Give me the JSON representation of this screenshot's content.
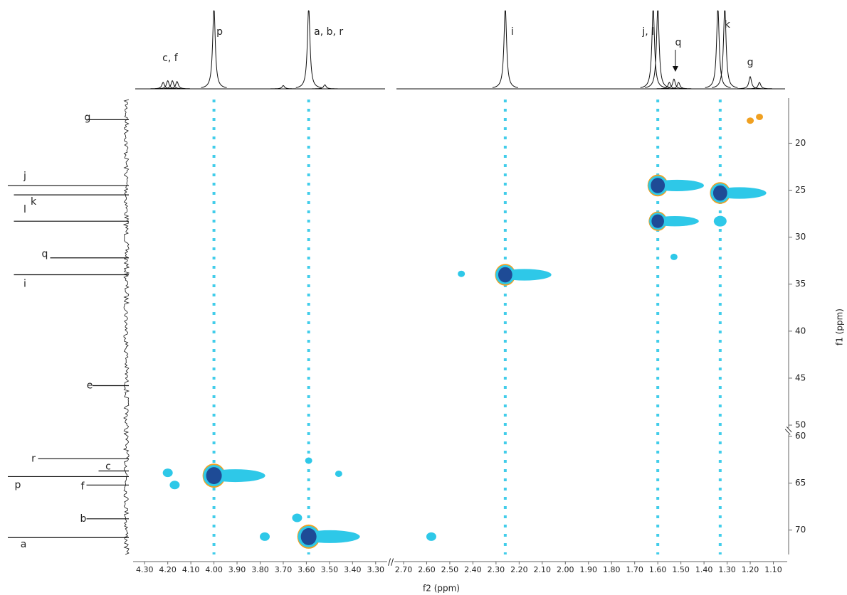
{
  "chart_data": {
    "type": "hsqc",
    "x_label": "f2 (ppm)",
    "y_label": "f1 (ppm)",
    "x_segments": [
      {
        "xlim": [
          4.35,
          3.25
        ],
        "xticks": [
          {
            "value": 4.3,
            "label": "4.30"
          },
          {
            "value": 4.2,
            "label": "4.20"
          },
          {
            "value": 4.1,
            "label": "4.10"
          },
          {
            "value": 4.0,
            "label": "4.00"
          },
          {
            "value": 3.9,
            "label": "3.90"
          },
          {
            "value": 3.8,
            "label": "3.80"
          },
          {
            "value": 3.7,
            "label": "3.70"
          },
          {
            "value": 3.6,
            "label": "3.60"
          },
          {
            "value": 3.5,
            "label": "3.50"
          },
          {
            "value": 3.4,
            "label": "3.40"
          },
          {
            "value": 3.3,
            "label": "3.30"
          }
        ]
      },
      {
        "xlim": [
          2.74,
          1.04
        ],
        "xticks": [
          {
            "value": 2.7,
            "label": "2.70"
          },
          {
            "value": 2.6,
            "label": "2.60"
          },
          {
            "value": 2.5,
            "label": "2.50"
          },
          {
            "value": 2.4,
            "label": "2.40"
          },
          {
            "value": 2.3,
            "label": "2.30"
          },
          {
            "value": 2.2,
            "label": "2.20"
          },
          {
            "value": 2.1,
            "label": "2.10"
          },
          {
            "value": 2.0,
            "label": "2.00"
          },
          {
            "value": 1.9,
            "label": "1.90"
          },
          {
            "value": 1.8,
            "label": "1.80"
          },
          {
            "value": 1.7,
            "label": "1.70"
          },
          {
            "value": 1.6,
            "label": "1.60"
          },
          {
            "value": 1.5,
            "label": "1.50"
          },
          {
            "value": 1.4,
            "label": "1.40"
          },
          {
            "value": 1.3,
            "label": "1.30"
          },
          {
            "value": 1.2,
            "label": "1.20"
          },
          {
            "value": 1.1,
            "label": "1.10"
          }
        ]
      }
    ],
    "y_segments": [
      {
        "ylim": [
          15.2,
          50.3
        ],
        "yticks": [
          20,
          25,
          30,
          35,
          40,
          45,
          50
        ]
      },
      {
        "ylim": [
          59.8,
          72.6
        ],
        "yticks": [
          60,
          65,
          70
        ]
      }
    ],
    "peaks": {
      "x": [
        4.0,
        3.59,
        2.26,
        1.6,
        1.6,
        1.33,
        1.33,
        4.2,
        4.17,
        3.64,
        3.59,
        1.53,
        1.2,
        1.16,
        2.58,
        3.78,
        3.46,
        2.45
      ],
      "y": [
        64.2,
        70.7,
        34.0,
        24.5,
        28.3,
        25.3,
        28.3,
        63.9,
        65.2,
        68.7,
        62.6,
        32.1,
        17.6,
        17.2,
        70.7,
        70.7,
        64.0,
        33.9
      ],
      "intensity": [
        10,
        10,
        9,
        9,
        8,
        9,
        3,
        2,
        2,
        2,
        1,
        1,
        1,
        1,
        2,
        2,
        1,
        1
      ]
    },
    "t1_noise_x": [
      4.0,
      3.59,
      2.26,
      1.6,
      1.33
    ],
    "proton_peaks": {
      "shift": [
        4.22,
        4.2,
        4.18,
        4.16,
        4.0,
        3.59,
        3.52,
        3.7,
        2.26,
        1.62,
        1.6,
        1.55,
        1.53,
        1.51,
        1.34,
        1.31,
        1.2,
        1.16
      ],
      "height": [
        8,
        10,
        10,
        9,
        100,
        100,
        5,
        4,
        100,
        100,
        100,
        8,
        12,
        8,
        100,
        100,
        15,
        8
      ]
    },
    "proton": {
      "labels": [
        "c, f",
        "p",
        "a, b, r",
        "i",
        "j, l",
        "q",
        "k",
        "g"
      ],
      "shift": [
        4.19,
        4.0,
        3.59,
        2.26,
        1.62,
        1.53,
        1.33,
        1.2
      ]
    },
    "carbon": {
      "labels": [
        "g",
        "j",
        "k",
        "l",
        "q",
        "i",
        "e",
        "r",
        "c",
        "p",
        "f",
        "b",
        "a"
      ],
      "shift": [
        17.5,
        24.5,
        25.5,
        28.3,
        32.2,
        34.0,
        45.8,
        62.4,
        63.7,
        64.3,
        65.2,
        68.8,
        70.8
      ],
      "height": [
        35,
        100,
        95,
        95,
        65,
        95,
        30,
        75,
        25,
        100,
        35,
        35,
        100
      ]
    },
    "colors": {
      "peak": "#2ec8e8",
      "core": "#1e4b96",
      "edge": "#f0a020",
      "spectrum": "#111111"
    }
  }
}
